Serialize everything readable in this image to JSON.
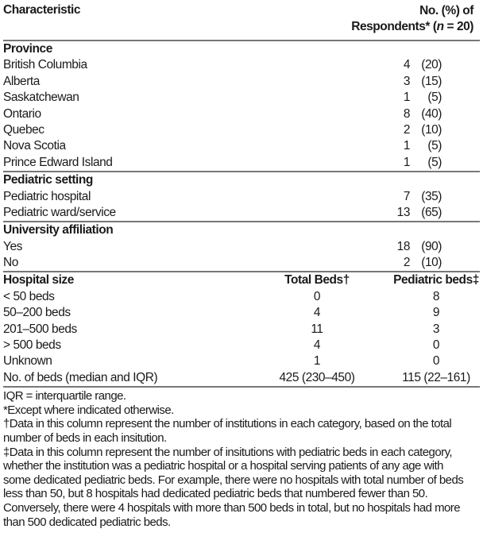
{
  "header": {
    "characteristic": "Characteristic",
    "respondents_line1": "No. (%) of",
    "respondents_line2_prefix": "Respondents* (",
    "respondents_n": "n",
    "respondents_line2_suffix": " = 20)"
  },
  "sections": [
    {
      "title": "Province",
      "rows": [
        {
          "label": "British Columbia",
          "n": "4",
          "pct": "(20)"
        },
        {
          "label": "Alberta",
          "n": "3",
          "pct": "(15)"
        },
        {
          "label": "Saskatchewan",
          "n": "1",
          "pct": "(5)"
        },
        {
          "label": "Ontario",
          "n": "8",
          "pct": "(40)"
        },
        {
          "label": "Quebec",
          "n": "2",
          "pct": "(10)"
        },
        {
          "label": "Nova Scotia",
          "n": "1",
          "pct": "(5)"
        },
        {
          "label": "Prince Edward Island",
          "n": "1",
          "pct": "(5)"
        }
      ]
    },
    {
      "title": "Pediatric setting",
      "rows": [
        {
          "label": "Pediatric hospital",
          "n": "7",
          "pct": "(35)"
        },
        {
          "label": "Pediatric ward/service",
          "n": "13",
          "pct": "(65)"
        }
      ]
    },
    {
      "title": "University affiliation",
      "rows": [
        {
          "label": "Yes",
          "n": "18",
          "pct": "(90)"
        },
        {
          "label": "No",
          "n": "2",
          "pct": "(10)"
        }
      ]
    }
  ],
  "hospital_size": {
    "title": "Hospital size",
    "col_total": "Total Beds†",
    "col_pediatric": "Pediatric beds‡",
    "rows": [
      {
        "label": "< 50 beds",
        "total": "0",
        "pediatric": "8"
      },
      {
        "label": "50–200 beds",
        "total": "4",
        "pediatric": "9"
      },
      {
        "label": "201–500 beds",
        "total": "11",
        "pediatric": "3"
      },
      {
        "label": "> 500 beds",
        "total": "4",
        "pediatric": "0"
      },
      {
        "label": "Unknown",
        "total": "1",
        "pediatric": "0"
      },
      {
        "label": "No. of beds (median and IQR)",
        "total": "425 (230–450)",
        "pediatric": "115 (22–161)"
      }
    ]
  },
  "footnotes": [
    "IQR = interquartile range.",
    "*Except where indicated otherwise.",
    "†Data in this column represent the number of institutions in each category, based on the total number of beds in each insitution.",
    "‡Data in this column represent the number of insitutions with pediatric beds in each category, whether the institution was a pediatric hospital or a hospital serving patients of any age with some dedicated pediatric beds. For example, there were no hospitals with total number of beds less than 50, but 8 hospitals had dedicated pediatric beds that numbered fewer than 50. Conversely, there were 4 hospitals with more than 500 beds in total, but no hospitals had more than 500 dedicated pediatric beds."
  ]
}
